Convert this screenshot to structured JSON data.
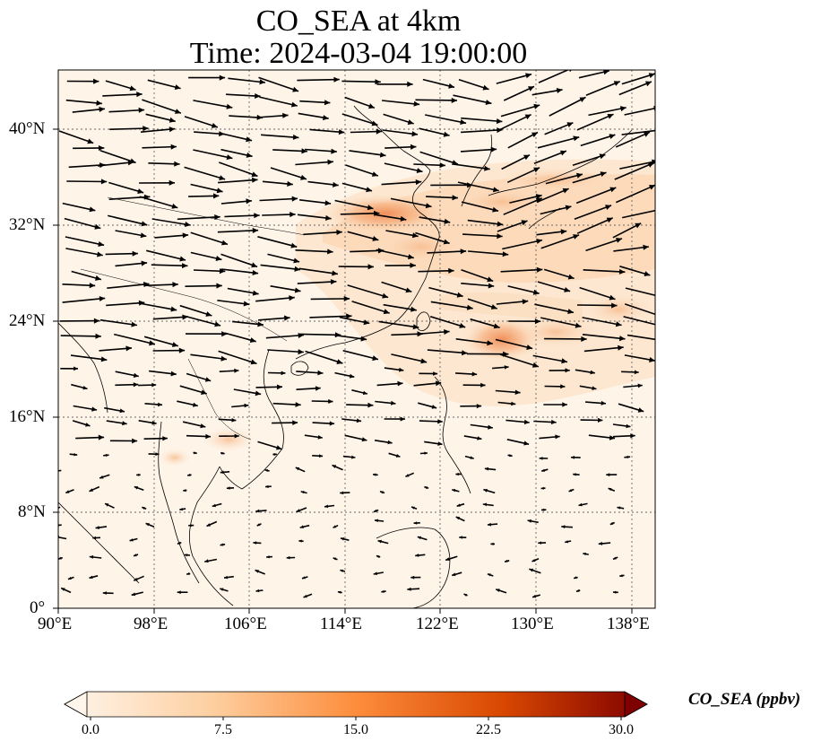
{
  "title_line1": "CO_SEA at 4km",
  "title_line2": "Time: 2024-03-04 19:00:00",
  "colorbar": {
    "label": "CO_SEA (ppbv)",
    "ticks": [
      "0.0",
      "7.5",
      "15.0",
      "22.5",
      "30.0"
    ],
    "min": 0,
    "max": 30,
    "colors": [
      "#fff5eb",
      "#fdd0a2",
      "#fd8d3c",
      "#d94801",
      "#7f0000"
    ]
  },
  "map": {
    "lon_labels": [
      "90°E",
      "98°E",
      "106°E",
      "114°E",
      "122°E",
      "130°E",
      "138°E"
    ],
    "lat_labels": [
      "0°",
      "8°N",
      "16°N",
      "24°N",
      "32°N",
      "40°N"
    ],
    "lon_range": [
      90,
      140
    ],
    "lat_range": [
      0,
      45
    ],
    "field": "CO_SEA",
    "level": "4km",
    "units": "ppbv"
  }
}
